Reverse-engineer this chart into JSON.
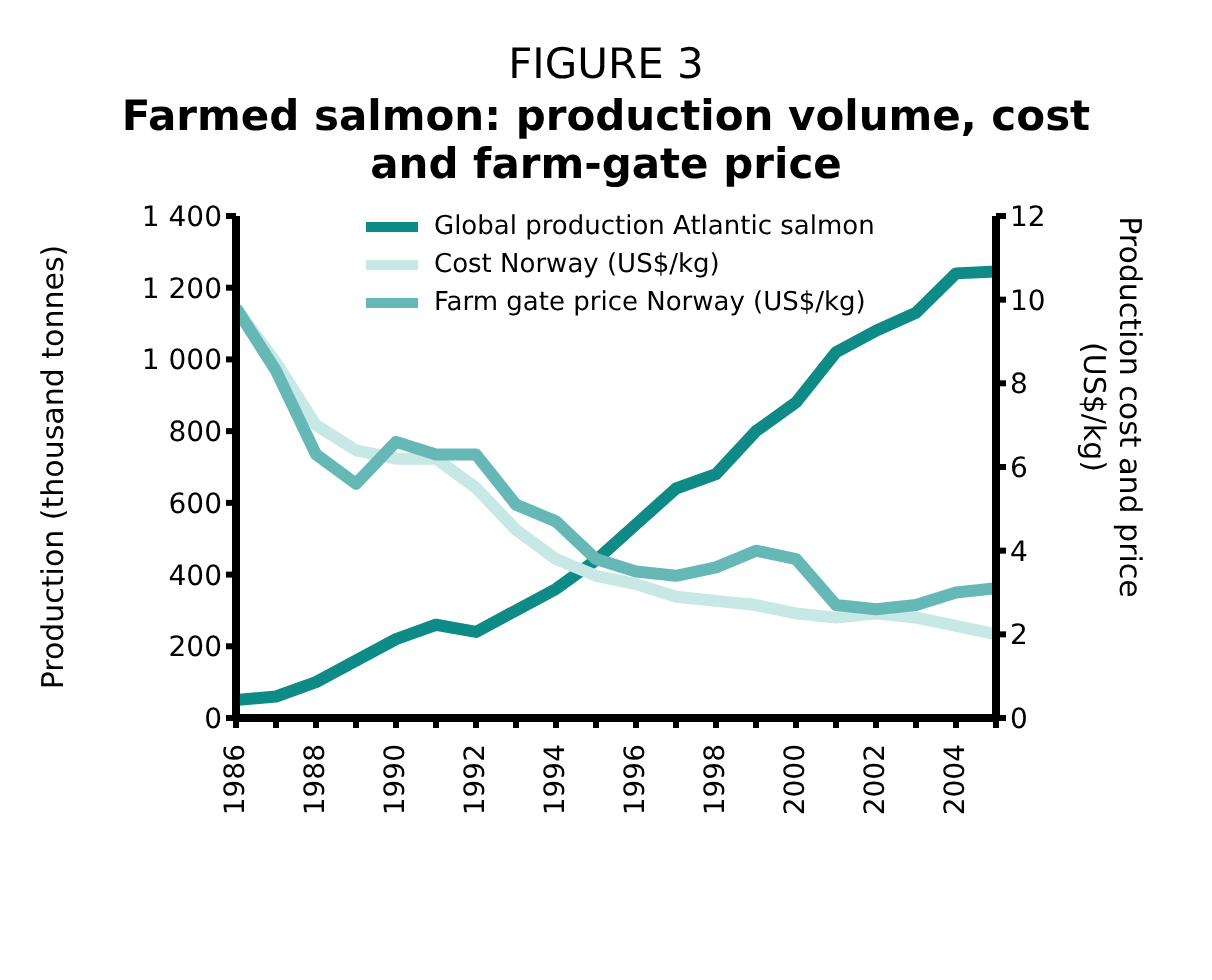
{
  "chart_data": {
    "type": "line",
    "title": "FIGURE 3",
    "subtitle": "Farmed salmon: production volume, cost and farm-gate price",
    "ylabel": "Production (thousand tonnes)",
    "y2label": "Production cost and price (US$/kg)",
    "x": [
      1986,
      1987,
      1988,
      1989,
      1990,
      1991,
      1992,
      1993,
      1994,
      1995,
      1996,
      1997,
      1998,
      1999,
      2000,
      2001,
      2002,
      2003,
      2004,
      2005
    ],
    "xlim": [
      1986,
      2005
    ],
    "xticks": [
      1986,
      {
        "value": 1987,
        "label": null
      },
      1988,
      {
        "value": 1989,
        "label": null
      },
      1990,
      {
        "value": 1991,
        "label": null
      },
      1992,
      {
        "value": 1993,
        "label": null
      },
      1994,
      {
        "value": 1995,
        "label": null
      },
      1996,
      {
        "value": 1997,
        "label": null
      },
      1998,
      {
        "value": 1999,
        "label": null
      },
      2000,
      {
        "value": 2001,
        "label": null
      },
      2002,
      {
        "value": 2003,
        "label": null
      },
      2004,
      {
        "value": 2005,
        "label": null
      }
    ],
    "ylim": [
      0,
      1400
    ],
    "yticks": [
      0,
      200,
      400,
      600,
      800,
      {
        "value": 1000,
        "label": "1 000"
      },
      {
        "value": 1200,
        "label": "1 200"
      },
      {
        "value": 1400,
        "label": "1 400"
      }
    ],
    "y2lim": [
      0,
      12
    ],
    "y2ticks": [
      0,
      2,
      4,
      6,
      8,
      10,
      12
    ],
    "legend": "top left",
    "grid": false,
    "line_style": "solid",
    "marker": "none",
    "series": [
      {
        "name": "Global production Atlantic salmon",
        "color": "#0e8a87",
        "values": [
          50,
          60,
          100,
          160,
          220,
          260,
          240,
          300,
          360,
          440,
          540,
          640,
          680,
          800,
          880,
          1020,
          1080,
          1130,
          1240,
          1245
        ]
      },
      {
        "name": "Cost Norway (US$/kg)",
        "color": "#c8e8e6",
        "axis": "y2",
        "values": [
          9.8,
          8.5,
          7.0,
          6.4,
          6.2,
          6.2,
          5.5,
          4.5,
          3.8,
          3.4,
          3.2,
          2.9,
          2.8,
          2.7,
          2.5,
          2.4,
          2.5,
          2.4,
          2.2,
          2.0
        ]
      },
      {
        "name": "Farm gate price Norway (US$/kg)",
        "color": "#66b8b6",
        "axis": "y2",
        "values": [
          9.8,
          8.3,
          6.3,
          5.6,
          6.6,
          6.3,
          6.3,
          5.1,
          4.7,
          3.8,
          3.5,
          3.4,
          3.6,
          4.0,
          3.8,
          2.7,
          2.6,
          2.7,
          3.0,
          3.1
        ]
      }
    ]
  }
}
